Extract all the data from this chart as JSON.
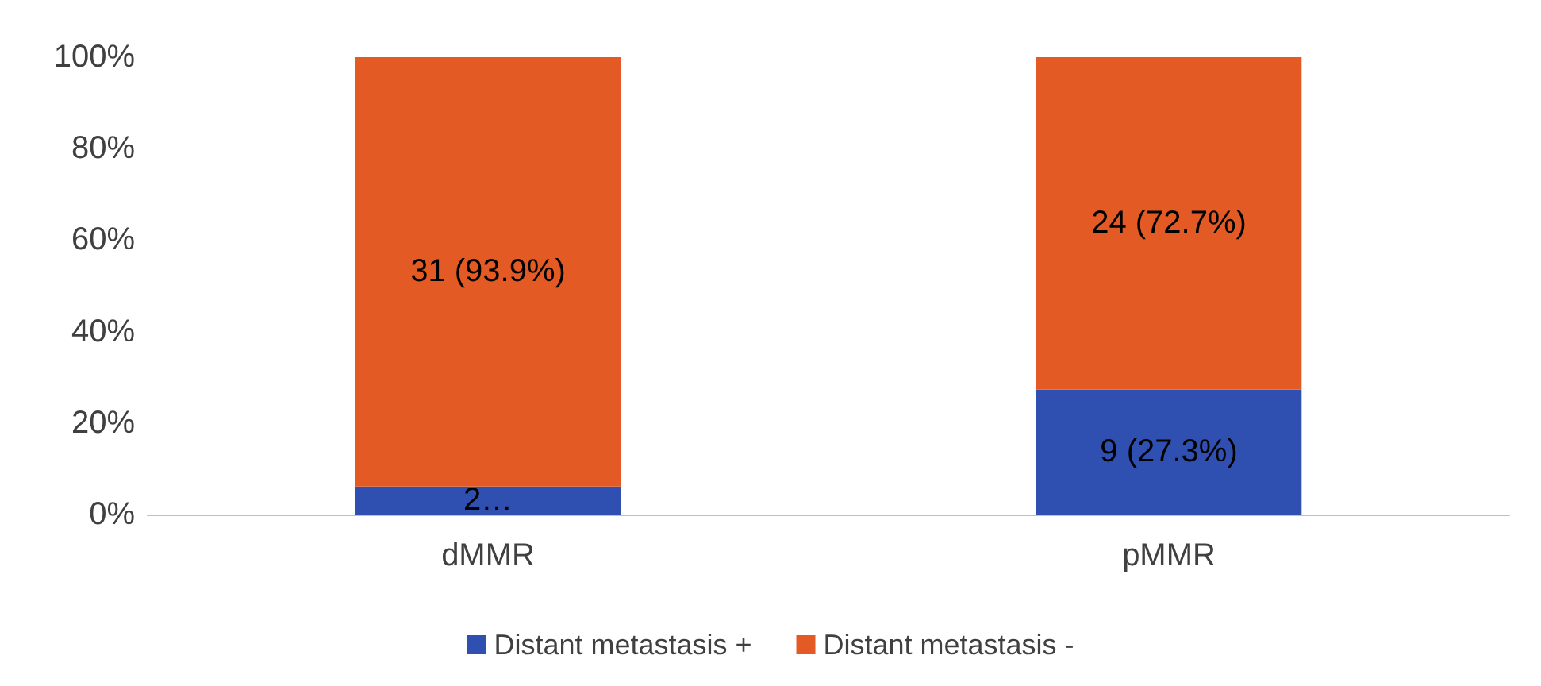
{
  "chart_data": {
    "type": "bar",
    "stacked": true,
    "categories": [
      "dMMR",
      "pMMR"
    ],
    "series": [
      {
        "name": "Distant metastasis +",
        "color": "#2f50b0",
        "values": [
          6.1,
          27.3
        ],
        "value_labels": [
          "2…",
          "9 (27.3%)"
        ]
      },
      {
        "name": "Distant metastasis -",
        "color": "#e35a24",
        "values": [
          93.9,
          72.7
        ],
        "value_labels": [
          "31 (93.9%)",
          "24 (72.7%)"
        ]
      }
    ],
    "ylim": [
      0,
      100
    ],
    "yticks": [
      {
        "value": 0,
        "label": "0%"
      },
      {
        "value": 20,
        "label": "20%"
      },
      {
        "value": 40,
        "label": "40%"
      },
      {
        "value": 60,
        "label": "60%"
      },
      {
        "value": 80,
        "label": "80%"
      },
      {
        "value": 100,
        "label": "100%"
      }
    ],
    "grid": false,
    "legend": "bottom"
  }
}
